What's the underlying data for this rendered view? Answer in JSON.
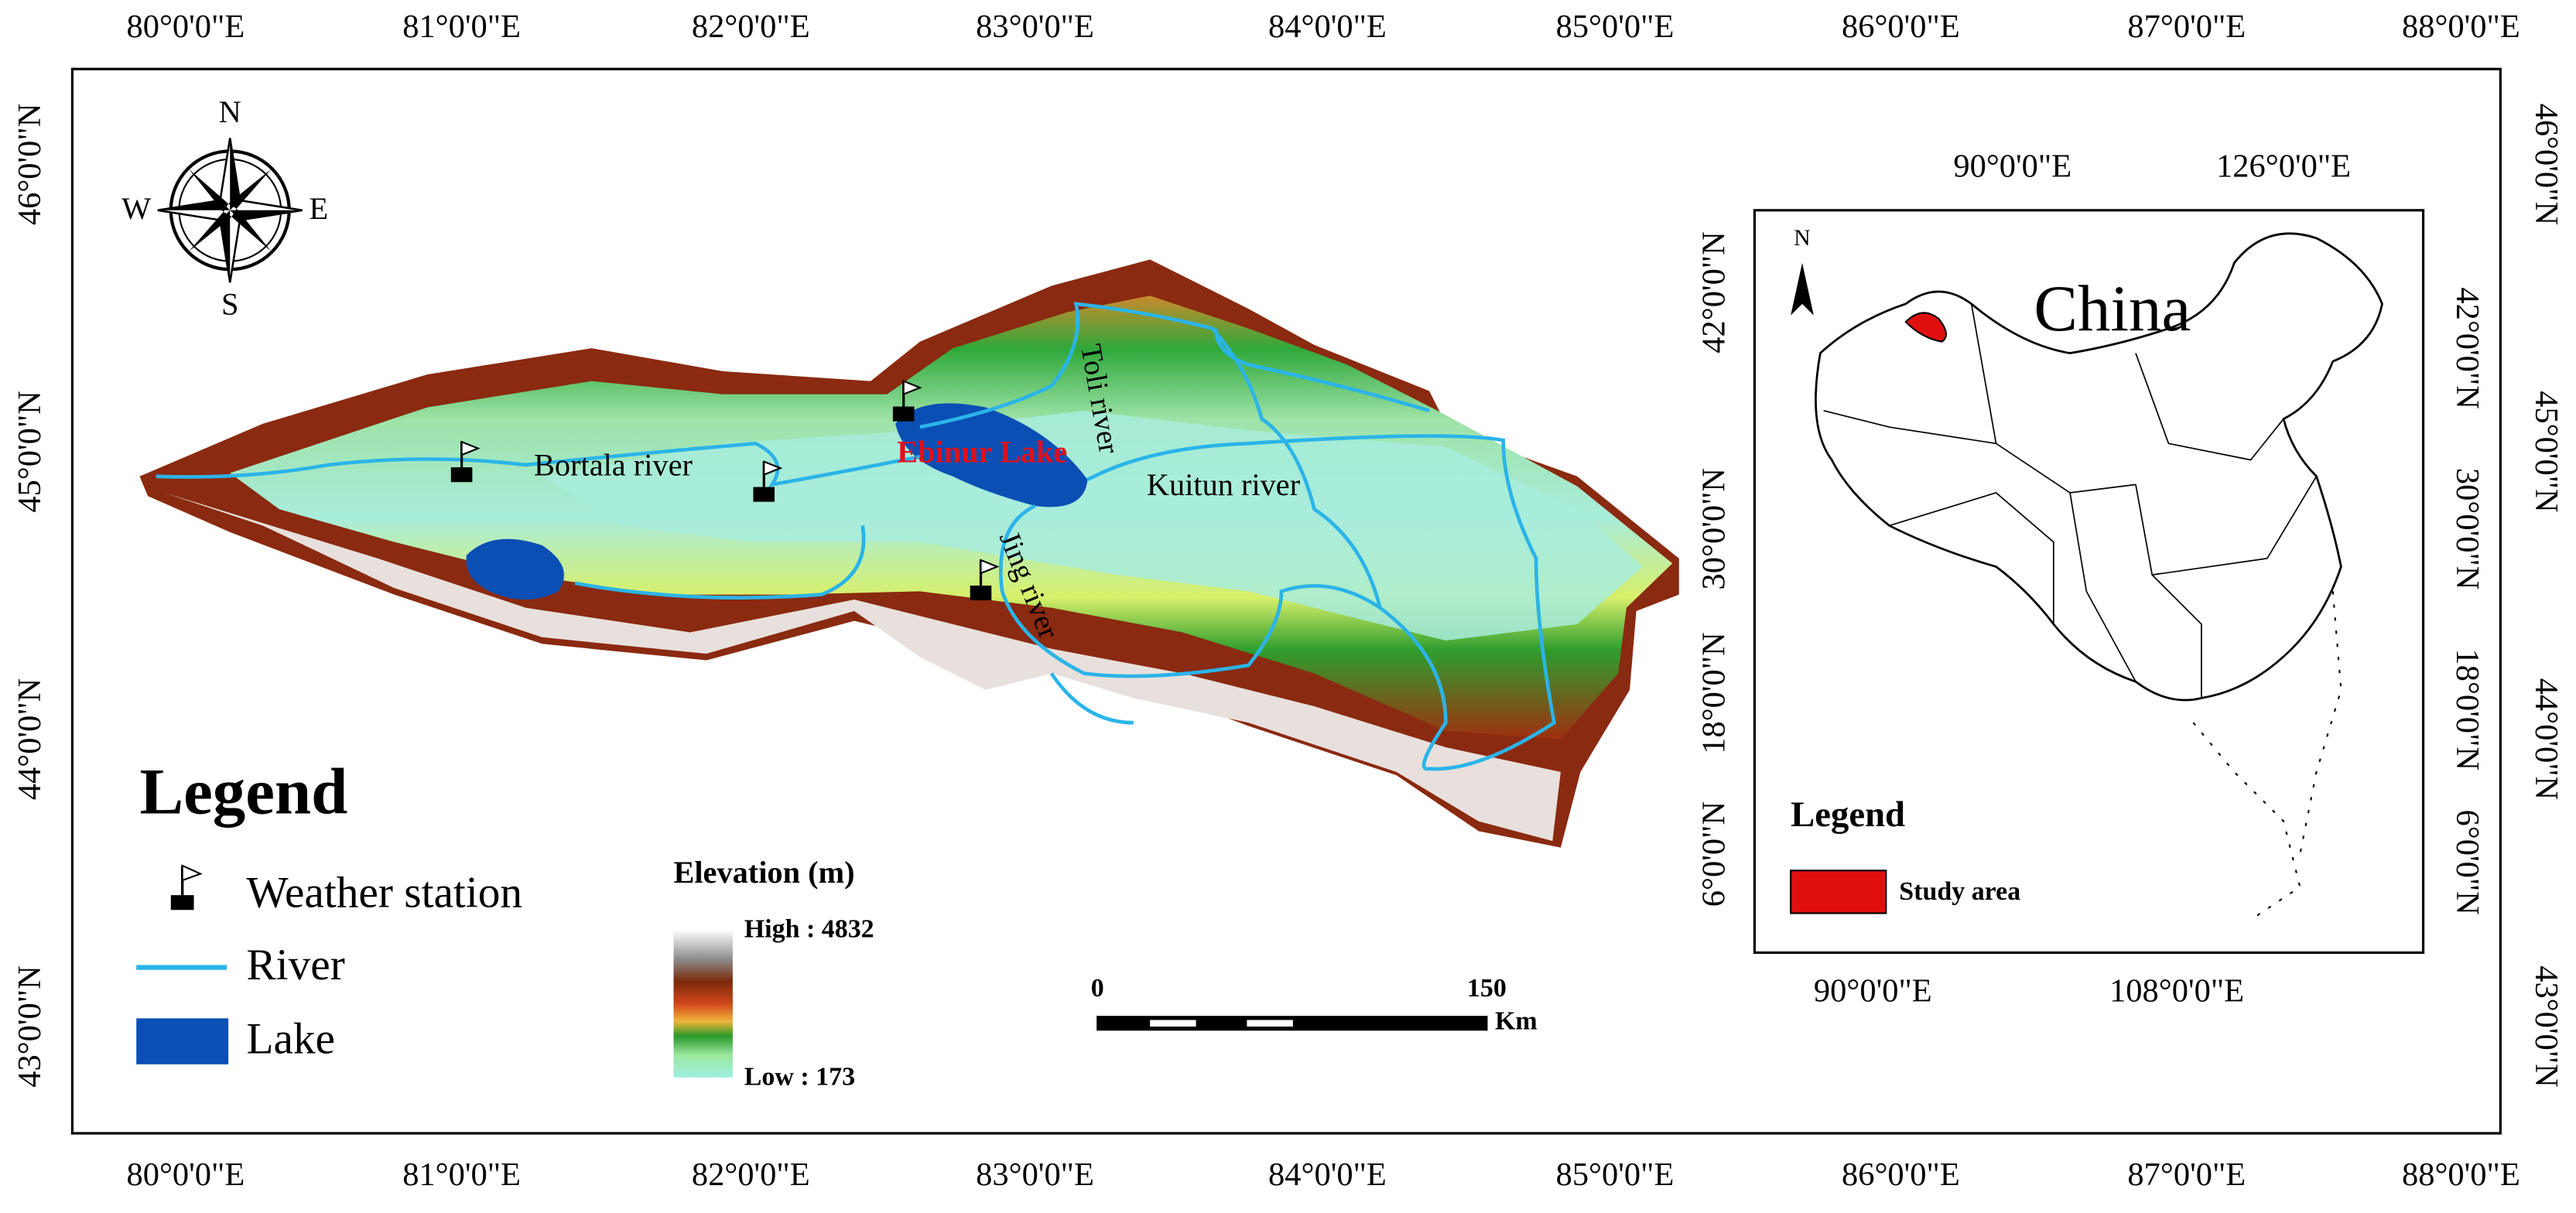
{
  "graticule": {
    "top": [
      "80°0'0\"E",
      "81°0'0\"E",
      "82°0'0\"E",
      "83°0'0\"E",
      "84°0'0\"E",
      "85°0'0\"E",
      "86°0'0\"E",
      "87°0'0\"E",
      "88°0'0\"E"
    ],
    "bottom": [
      "80°0'0\"E",
      "81°0'0\"E",
      "82°0'0\"E",
      "83°0'0\"E",
      "84°0'0\"E",
      "85°0'0\"E",
      "86°0'0\"E",
      "87°0'0\"E",
      "88°0'0\"E"
    ],
    "left": [
      "46°0'0\"N",
      "45°0'0\"N",
      "44°0'0\"N",
      "43°0'0\"N"
    ],
    "right": [
      "46°0'0\"N",
      "45°0'0\"N",
      "44°0'0\"N",
      "43°0'0\"N"
    ]
  },
  "compass": {
    "n": "N",
    "s": "S",
    "e": "E",
    "w": "W"
  },
  "labels": {
    "bortala": "Bortala river",
    "ebinur": "Ebinur Lake",
    "toli": "Toli river",
    "kuitun": "Kuitun river",
    "jing": "Jing river"
  },
  "legend": {
    "title": "Legend",
    "items": [
      "Weather station",
      "River",
      "Lake"
    ]
  },
  "elevation": {
    "title": "Elevation (m)",
    "high": "High : 4832",
    "low": "Low : 173"
  },
  "scale_bar": {
    "start": "0",
    "end": "150",
    "unit": "Km"
  },
  "inset": {
    "title": "China",
    "north": "N",
    "top": [
      "90°0'0\"E",
      "126°0'0\"E"
    ],
    "bottom": [
      "90°0'0\"E",
      "108°0'0\"E"
    ],
    "left": [
      "42°0'0\"N",
      "30°0'0\"N",
      "18°0'0\"N",
      "6°0'0\"N"
    ],
    "right": [
      "42°0'0\"N",
      "30°0'0\"N",
      "18°0'0\"N",
      "6°0'0\"N"
    ],
    "legend_title": "Legend",
    "legend_item": "Study area"
  }
}
